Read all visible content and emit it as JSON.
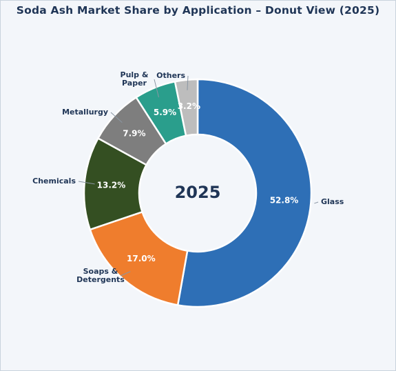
{
  "chart_data": {
    "type": "pie",
    "title": "Soda Ash Market Share by Application – Donut View (2025)",
    "center_label": "2025",
    "unit": "%",
    "slices": [
      {
        "label": "Glass",
        "value": 52.8,
        "display": "52.8%",
        "color": "#2e6fb6",
        "label_lines": [
          "Glass"
        ]
      },
      {
        "label": "Soaps & Detergents",
        "value": 17.0,
        "display": "17.0%",
        "color": "#ef7d2d",
        "label_lines": [
          "Soaps &",
          "Detergents"
        ]
      },
      {
        "label": "Chemicals",
        "value": 13.2,
        "display": "13.2%",
        "color": "#344f22",
        "label_lines": [
          "Chemicals"
        ]
      },
      {
        "label": "Metallurgy",
        "value": 7.9,
        "display": "7.9%",
        "color": "#7e7e7e",
        "label_lines": [
          "Metallurgy"
        ]
      },
      {
        "label": "Pulp & Paper",
        "value": 5.9,
        "display": "5.9%",
        "color": "#2a9e8c",
        "label_lines": [
          "Pulp &",
          "Paper"
        ]
      },
      {
        "label": "Others",
        "value": 3.2,
        "display": "3.2%",
        "color": "#bdbdbd",
        "label_lines": [
          "Others"
        ]
      }
    ]
  }
}
